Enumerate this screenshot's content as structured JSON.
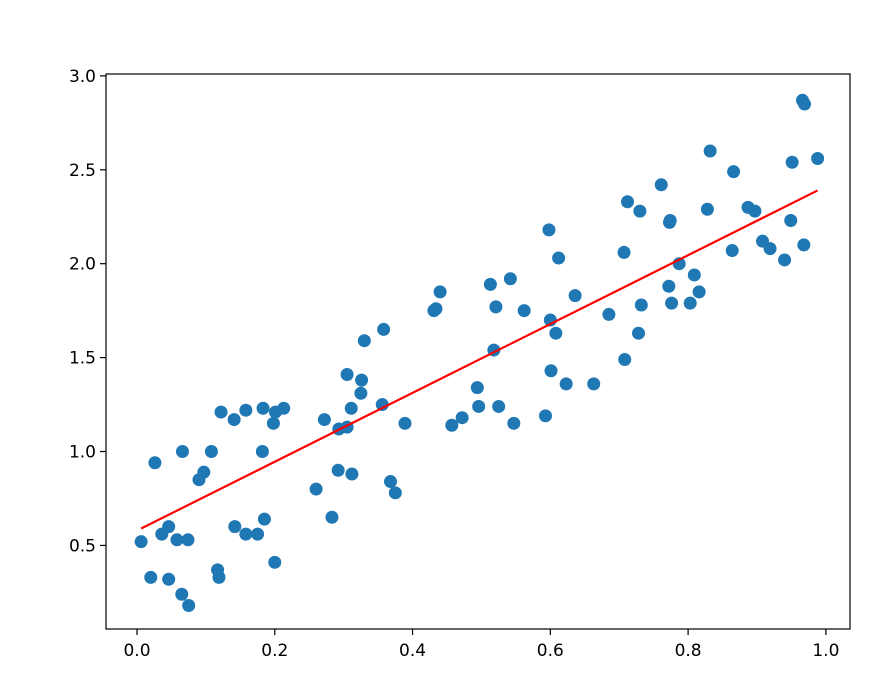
{
  "chart_data": {
    "type": "scatter",
    "title": "",
    "xlabel": "",
    "ylabel": "",
    "xlim": [
      -0.045,
      1.035
    ],
    "ylim": [
      0.055,
      3.01
    ],
    "xticks": [
      0.0,
      0.2,
      0.4,
      0.6,
      0.8,
      1.0
    ],
    "xtick_labels": [
      "0.0",
      "0.2",
      "0.4",
      "0.6",
      "0.8",
      "1.0"
    ],
    "yticks": [
      0.5,
      1.0,
      1.5,
      2.0,
      2.5,
      3.0
    ],
    "ytick_labels": [
      "0.5",
      "1.0",
      "1.5",
      "2.0",
      "2.5",
      "3.0"
    ],
    "grid": false,
    "legend": "none",
    "colors": {
      "points": "#1f77b4",
      "fit_line": "#ff0000",
      "axes": "#000000"
    },
    "series": [
      {
        "kind": "scatter",
        "points": [
          [
            0.006,
            0.52
          ],
          [
            0.02,
            0.33
          ],
          [
            0.026,
            0.94
          ],
          [
            0.036,
            0.56
          ],
          [
            0.046,
            0.6
          ],
          [
            0.046,
            0.32
          ],
          [
            0.058,
            0.53
          ],
          [
            0.065,
            0.24
          ],
          [
            0.066,
            1.0
          ],
          [
            0.074,
            0.53
          ],
          [
            0.075,
            0.18
          ],
          [
            0.09,
            0.85
          ],
          [
            0.097,
            0.89
          ],
          [
            0.108,
            1.0
          ],
          [
            0.117,
            0.37
          ],
          [
            0.119,
            0.33
          ],
          [
            0.122,
            1.21
          ],
          [
            0.141,
            1.17
          ],
          [
            0.142,
            0.6
          ],
          [
            0.158,
            1.22
          ],
          [
            0.158,
            0.56
          ],
          [
            0.175,
            0.56
          ],
          [
            0.182,
            1.0
          ],
          [
            0.183,
            1.23
          ],
          [
            0.185,
            0.64
          ],
          [
            0.198,
            1.15
          ],
          [
            0.2,
            0.41
          ],
          [
            0.201,
            1.21
          ],
          [
            0.213,
            1.23
          ],
          [
            0.26,
            0.8
          ],
          [
            0.272,
            1.17
          ],
          [
            0.283,
            0.65
          ],
          [
            0.292,
            0.9
          ],
          [
            0.293,
            1.12
          ],
          [
            0.305,
            1.13
          ],
          [
            0.305,
            1.41
          ],
          [
            0.311,
            1.23
          ],
          [
            0.312,
            0.88
          ],
          [
            0.325,
            1.31
          ],
          [
            0.326,
            1.38
          ],
          [
            0.33,
            1.59
          ],
          [
            0.356,
            1.25
          ],
          [
            0.358,
            1.65
          ],
          [
            0.368,
            0.84
          ],
          [
            0.375,
            0.78
          ],
          [
            0.389,
            1.15
          ],
          [
            0.431,
            1.75
          ],
          [
            0.434,
            1.76
          ],
          [
            0.44,
            1.85
          ],
          [
            0.457,
            1.14
          ],
          [
            0.472,
            1.18
          ],
          [
            0.494,
            1.34
          ],
          [
            0.496,
            1.24
          ],
          [
            0.513,
            1.89
          ],
          [
            0.518,
            1.54
          ],
          [
            0.521,
            1.77
          ],
          [
            0.525,
            1.24
          ],
          [
            0.542,
            1.92
          ],
          [
            0.547,
            1.15
          ],
          [
            0.562,
            1.75
          ],
          [
            0.593,
            1.19
          ],
          [
            0.598,
            2.18
          ],
          [
            0.6,
            1.7
          ],
          [
            0.601,
            1.43
          ],
          [
            0.608,
            1.63
          ],
          [
            0.612,
            2.03
          ],
          [
            0.623,
            1.36
          ],
          [
            0.636,
            1.83
          ],
          [
            0.663,
            1.36
          ],
          [
            0.685,
            1.73
          ],
          [
            0.707,
            2.06
          ],
          [
            0.708,
            1.49
          ],
          [
            0.712,
            2.33
          ],
          [
            0.728,
            1.63
          ],
          [
            0.73,
            2.28
          ],
          [
            0.732,
            1.78
          ],
          [
            0.761,
            2.42
          ],
          [
            0.772,
            1.88
          ],
          [
            0.773,
            2.22
          ],
          [
            0.774,
            2.23
          ],
          [
            0.776,
            1.79
          ],
          [
            0.787,
            2.0
          ],
          [
            0.803,
            1.79
          ],
          [
            0.809,
            1.94
          ],
          [
            0.816,
            1.85
          ],
          [
            0.828,
            2.29
          ],
          [
            0.832,
            2.6
          ],
          [
            0.864,
            2.07
          ],
          [
            0.866,
            2.49
          ],
          [
            0.887,
            2.3
          ],
          [
            0.897,
            2.28
          ],
          [
            0.908,
            2.12
          ],
          [
            0.919,
            2.08
          ],
          [
            0.94,
            2.02
          ],
          [
            0.949,
            2.23
          ],
          [
            0.951,
            2.54
          ],
          [
            0.966,
            2.87
          ],
          [
            0.968,
            2.1
          ],
          [
            0.969,
            2.85
          ],
          [
            0.988,
            2.56
          ]
        ]
      },
      {
        "kind": "line",
        "points": [
          [
            0.006,
            0.59
          ],
          [
            0.988,
            2.39
          ]
        ]
      }
    ]
  }
}
